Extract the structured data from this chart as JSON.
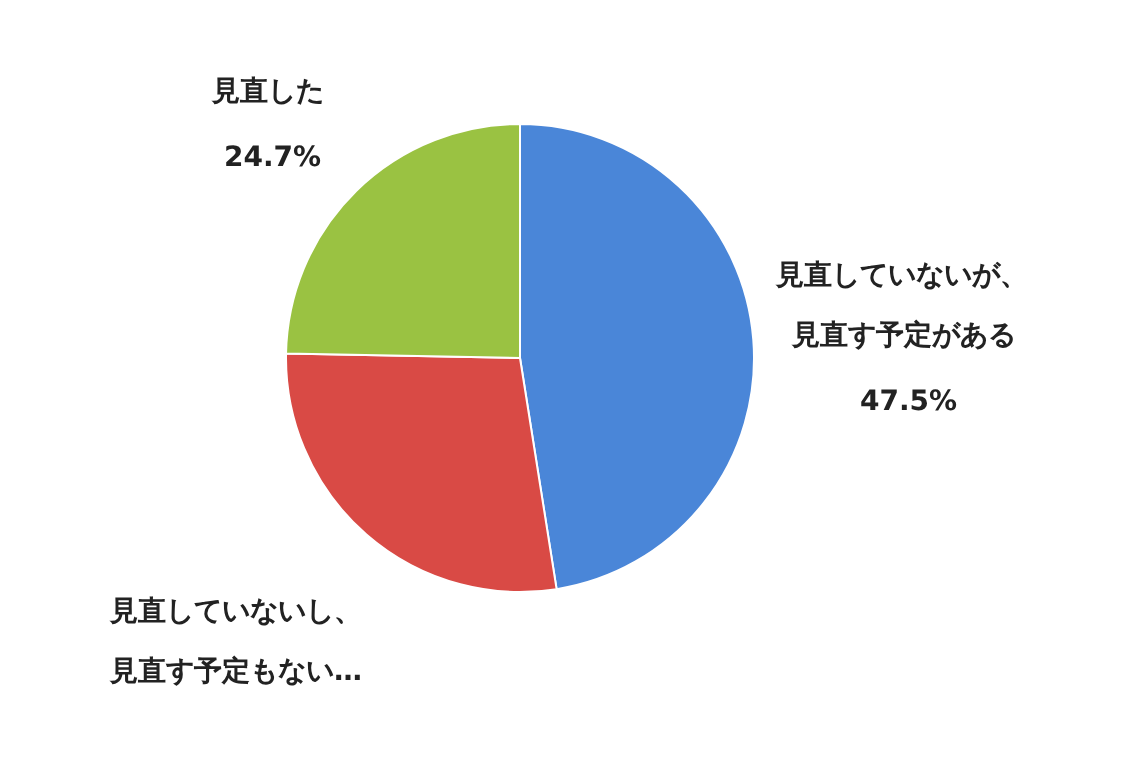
{
  "chart_data": {
    "type": "pie",
    "categories": [
      "見直していないが、見直す予定がある",
      "見直していないし、見直す予定もない…",
      "見直した"
    ],
    "values": [
      47.5,
      27.8,
      24.7
    ],
    "colors": [
      "#4a86d8",
      "#d94a45",
      "#9ac242"
    ],
    "value_labels": [
      "47.5%",
      null,
      "24.7%"
    ]
  }
}
